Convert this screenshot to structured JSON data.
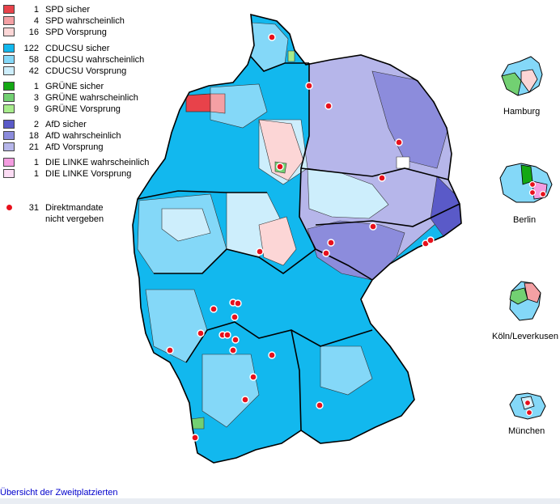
{
  "legend": [
    {
      "count": "1",
      "label": "SPD sicher",
      "color": "#e8424a"
    },
    {
      "count": "4",
      "label": "SPD wahrscheinlich",
      "color": "#f4a0a4"
    },
    {
      "count": "16",
      "label": "SPD Vorsprung",
      "color": "#fcd6d6"
    },
    {
      "count": "122",
      "label": "CDUCSU sicher",
      "color": "#12b8ee"
    },
    {
      "count": "58",
      "label": "CDUCSU wahrscheinlich",
      "color": "#84d8f8"
    },
    {
      "count": "42",
      "label": "CDUCSU Vorsprung",
      "color": "#cdeefc"
    },
    {
      "count": "1",
      "label": "GRÜNE sicher",
      "color": "#14a814"
    },
    {
      "count": "3",
      "label": "GRÜNE wahrscheinlich",
      "color": "#72d072"
    },
    {
      "count": "9",
      "label": "GRÜNE Vorsprung",
      "color": "#a8ec8c"
    },
    {
      "count": "2",
      "label": "AfD sicher",
      "color": "#5a5ac8"
    },
    {
      "count": "18",
      "label": "AfD wahrscheinlich",
      "color": "#8c8cdc"
    },
    {
      "count": "21",
      "label": "AfD Vorsprung",
      "color": "#b6b6ea"
    },
    {
      "count": "1",
      "label": "DIE LINKE wahrscheinlich",
      "color": "#f49ce0"
    },
    {
      "count": "1",
      "label": "DIE LINKE Vorsprung",
      "color": "#fcdcf4"
    }
  ],
  "legend_dot": {
    "count": "31",
    "line1": "Direktmandate",
    "line2": "nicht vergeben",
    "color": "#e8101c"
  },
  "insets": {
    "hamburg": "Hamburg",
    "berlin": "Berlin",
    "koeln": "Köln/Leverkusen",
    "muenchen": "München"
  },
  "footer_link": "Übersicht der Zweitplatzierten"
}
